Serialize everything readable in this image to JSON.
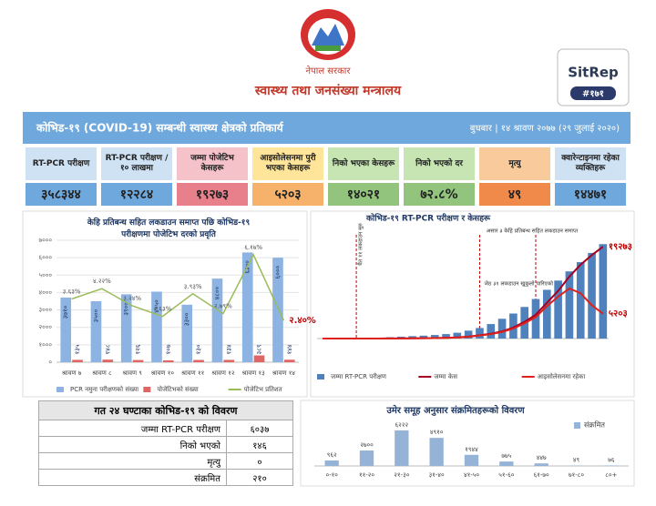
{
  "header": {
    "org": "नेपाल सरकार",
    "ministry": "स्वास्थ्य तथा जनसंख्या मन्त्रालय",
    "badge": "SitRep",
    "number": "#१७१"
  },
  "banner": {
    "title": "कोभिड-१९ (COVID-19) सम्बन्धी स्वास्थ्य क्षेत्रको प्रतिकार्य",
    "date": "बुधबार | १४ श्रावण २०७७ (२९ जुलाई २०२०)"
  },
  "stats": [
    {
      "label": "RT-PCR परीक्षण",
      "value": "३५८३४४"
    },
    {
      "label": "RT-PCR परीक्षण /१० लाखमा",
      "value": "१२२८४"
    },
    {
      "label": "जम्मा पोजेटिभ केसहरू",
      "value": "१९२७३"
    },
    {
      "label": "आइसोलेसनमा पुरी भएका केसहरू",
      "value": "५२०३"
    },
    {
      "label": "निको भएका केसहरू",
      "value": "१४०२१"
    },
    {
      "label": "निको भएको दर",
      "value": "७२.८%"
    },
    {
      "label": "मृत्यु",
      "value": "४९"
    },
    {
      "label": "क्वारेन्टाइनमा रहेका व्यक्तिहरू",
      "value": "१४४७१"
    }
  ],
  "chart_data": [
    {
      "type": "bar",
      "title": "केहि प्रतिबन्ध सहित लकडाउन समाप्त पछि कोभिड-१९ परीक्षणमा पोजेटिभ दरको प्रवृति",
      "categories": [
        "श्रावण ७",
        "श्रावण ८",
        "श्रावण ९",
        "श्रावण १०",
        "श्रावण ११",
        "श्रावण १२",
        "श्रावण १३",
        "श्रावण १४"
      ],
      "series": [
        {
          "name": "PCR नमुना परीक्षणको संख्या",
          "type": "bar",
          "color": "#8db3e2",
          "values": [
            3710,
            3500,
            3900,
            4050,
            3300,
            4800,
            6300,
            6000
          ],
          "value_labels": [
            "३७१०",
            "३५००",
            "३९००",
            "४०५०",
            "३३००",
            "४८००",
            "६३००",
            "६०००"
          ]
        },
        {
          "name": "पोजेटिभको संख्या",
          "type": "bar",
          "color": "#e06666",
          "values": [
            135,
            148,
            126,
            107,
            130,
            134,
            389,
            144
          ],
          "value_labels": [
            "१३५",
            "१४८",
            "१२६",
            "१०७",
            "१३०",
            "१३४",
            "३८९",
            "१४४"
          ]
        },
        {
          "name": "पोजेटिभ प्रतिशत",
          "type": "line",
          "axis": "y2",
          "color": "#9bbb59",
          "values": [
            3.63,
            4.22,
            3.24,
            2.63,
            3.93,
            2.79,
            6.17,
            2.4
          ],
          "value_labels": [
            "३.६३%",
            "४.२२%",
            "३.२४%",
            "२.६३%",
            "३.९३%",
            "२.७९%",
            "६.१७%",
            "२.४०%"
          ]
        }
      ],
      "ylim": [
        0,
        7000
      ],
      "yticks": [
        {
          "value": 0,
          "label": "०"
        },
        {
          "value": 1000,
          "label": "१०००"
        },
        {
          "value": 2000,
          "label": "२०००"
        },
        {
          "value": 3000,
          "label": "३०००"
        },
        {
          "value": 4000,
          "label": "४०००"
        },
        {
          "value": 5000,
          "label": "५०००"
        },
        {
          "value": 6000,
          "label": "६०००"
        },
        {
          "value": 7000,
          "label": "७०००"
        }
      ],
      "y2lim": [
        0,
        7
      ],
      "grid": true,
      "legend": "bottom"
    },
    {
      "type": "bar",
      "title": "कोभिड-१९ RT-PCR परीक्षण र केसहरू",
      "categories": [
        null,
        null,
        null,
        null,
        null,
        null,
        null,
        null,
        null,
        null,
        null,
        null,
        null,
        null,
        null,
        null,
        null,
        null,
        null,
        null,
        null,
        null,
        null,
        null,
        null,
        null
      ],
      "series": [
        {
          "name": "जम्मा RT-PCR परीक्षण",
          "type": "bar",
          "color": "#4f81bd",
          "values": [
            100,
            500,
            1200,
            1800,
            2500,
            3500,
            5000,
            7000,
            9000,
            11000,
            13500,
            17000,
            22000,
            30000,
            40000,
            55000,
            75000,
            95000,
            120000,
            150000,
            185000,
            220000,
            255000,
            290000,
            325000,
            358344
          ]
        },
        {
          "name": "जम्मा केस",
          "type": "line",
          "axis": "y2",
          "color": "#a50021",
          "values": [
            1,
            1,
            2,
            3,
            5,
            9,
            14,
            30,
            50,
            75,
            100,
            150,
            250,
            400,
            700,
            1000,
            1500,
            2300,
            3500,
            5000,
            7500,
            10000,
            13000,
            15500,
            17500,
            19273
          ],
          "value_labels": [
            null,
            null,
            null,
            null,
            null,
            null,
            null,
            null,
            null,
            null,
            null,
            null,
            null,
            null,
            null,
            null,
            null,
            null,
            null,
            null,
            null,
            null,
            null,
            null,
            null,
            "१९२७३"
          ]
        },
        {
          "name": "आइसोलेसनमा रहेका",
          "type": "line",
          "axis": "y2",
          "color": "#e0201b",
          "values": [
            1,
            1,
            2,
            3,
            5,
            9,
            13,
            28,
            45,
            68,
            90,
            135,
            220,
            360,
            640,
            920,
            1380,
            2100,
            3200,
            4500,
            6800,
            8800,
            10500,
            9500,
            7000,
            5203
          ],
          "value_labels": [
            null,
            null,
            null,
            null,
            null,
            null,
            null,
            null,
            null,
            null,
            null,
            null,
            null,
            null,
            null,
            null,
            null,
            null,
            null,
            null,
            null,
            null,
            null,
            null,
            null,
            "५२०३"
          ]
        }
      ],
      "annotations": [
        "चैत ११ लकडाउन सुरु",
        "जेठ ३१ लकडाउन खुकुलो पारिएको",
        "असार ३ केहि प्रतिबन्ध सहित लकडाउन समाप्त"
      ],
      "ylim": [
        0,
        380000
      ],
      "y2lim": [
        0,
        21000
      ],
      "grid": false,
      "legend": "bottom"
    },
    {
      "type": "bar",
      "title": "उमेर समूह अनुसार संक्रमितहरूको विवरण",
      "categories": [
        "०-१०",
        "११-२०",
        "२१-३०",
        "३१-४०",
        "४१-५०",
        "५१-६०",
        "६१-७०",
        "७१-८०",
        "८०+"
      ],
      "series": [
        {
          "name": "संक्रमित",
          "type": "bar",
          "color": "#95b3d7",
          "values": [
            962,
            2700,
            6222,
            4910,
            1944,
            775,
            447,
            49,
            76
          ],
          "value_labels": [
            "९६२",
            "२७००",
            "६२२२",
            "४९१०",
            "१९४४",
            "७७५",
            "४४७",
            "४९",
            "७६"
          ]
        }
      ],
      "ylim": [
        0,
        7000
      ],
      "grid": false,
      "legend": "top-right"
    }
  ],
  "table": {
    "title": "गत २४ घण्टाका कोभिड-१९ को विवरण",
    "rows": [
      [
        "जम्मा RT-PCR परीक्षण",
        "६०३७"
      ],
      [
        "निको भएको",
        "१४६"
      ],
      [
        "मृत्यु",
        "०"
      ],
      [
        "संक्रमित",
        "२१०"
      ]
    ]
  }
}
